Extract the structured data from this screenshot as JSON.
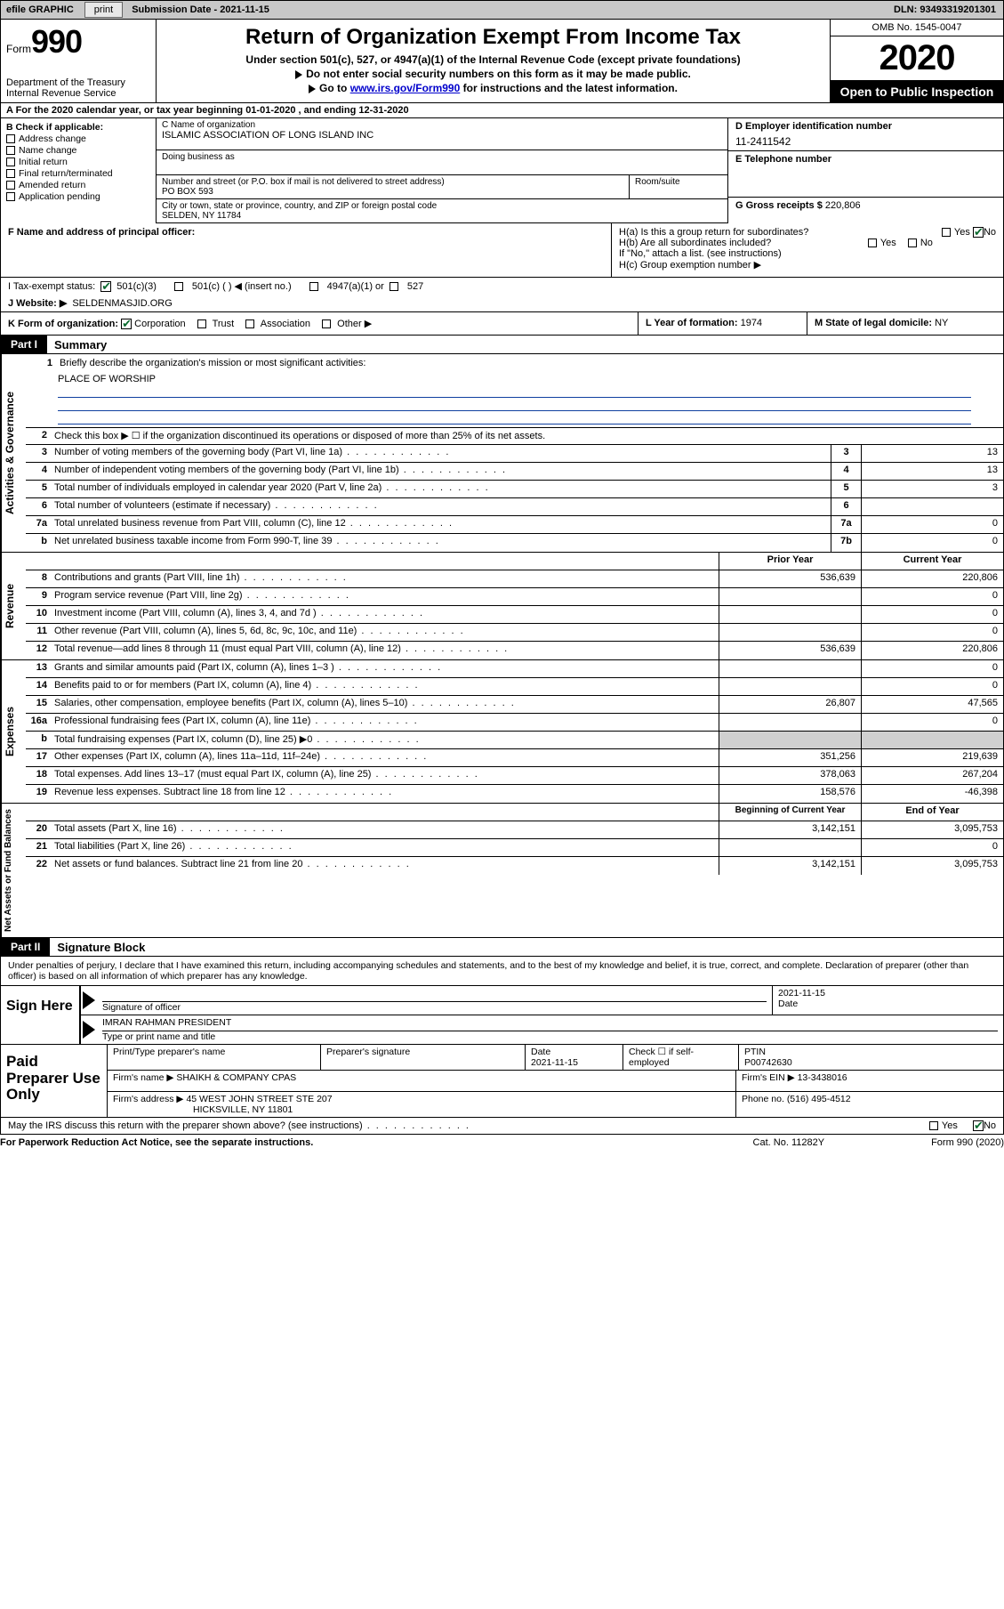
{
  "efile": {
    "graphic": "efile GRAPHIC",
    "print": "print",
    "submission": "Submission Date - 2021-11-15",
    "dln": "DLN: 93493319201301"
  },
  "header": {
    "form_word": "Form",
    "form_num": "990",
    "dept": "Department of the Treasury\nInternal Revenue Service",
    "title": "Return of Organization Exempt From Income Tax",
    "sub1": "Under section 501(c), 527, or 4947(a)(1) of the Internal Revenue Code (except private foundations)",
    "sub2": "Do not enter social security numbers on this form as it may be made public.",
    "sub3_a": "Go to ",
    "sub3_link": "www.irs.gov/Form990",
    "sub3_b": " for instructions and the latest information.",
    "omb": "OMB No. 1545-0047",
    "year": "2020",
    "open": "Open to Public Inspection"
  },
  "lineA": "A For the 2020 calendar year, or tax year beginning 01-01-2020   , and ending 12-31-2020",
  "B": {
    "label": "B Check if applicable:",
    "opts": [
      "Address change",
      "Name change",
      "Initial return",
      "Final return/terminated",
      "Amended return",
      "Application pending"
    ]
  },
  "C": {
    "name_lab": "C Name of organization",
    "name": "ISLAMIC ASSOCIATION OF LONG ISLAND INC",
    "dba_lab": "Doing business as",
    "street_lab": "Number and street (or P.O. box if mail is not delivered to street address)",
    "room_lab": "Room/suite",
    "street": "PO BOX 593",
    "city_lab": "City or town, state or province, country, and ZIP or foreign postal code",
    "city": "SELDEN, NY  11784"
  },
  "D": {
    "lab": "D Employer identification number",
    "val": "11-2411542"
  },
  "E": {
    "lab": "E Telephone number",
    "val": ""
  },
  "G": {
    "lab": "G Gross receipts $",
    "val": "220,806"
  },
  "F": {
    "lab": "F  Name and address of principal officer:"
  },
  "H": {
    "a": "H(a)  Is this a group return for subordinates?",
    "b": "H(b)  Are all subordinates included?",
    "b2": "If \"No,\" attach a list. (see instructions)",
    "c": "H(c)  Group exemption number ▶"
  },
  "I": {
    "lab": "I   Tax-exempt status:",
    "o1": "501(c)(3)",
    "o2": "501(c) (  ) ◀ (insert no.)",
    "o3": "4947(a)(1) or",
    "o4": "527"
  },
  "J": {
    "lab": "J   Website: ▶",
    "val": "SELDENMASJID.ORG"
  },
  "K": {
    "lab": "K Form of organization:",
    "opts": [
      "Corporation",
      "Trust",
      "Association",
      "Other ▶"
    ]
  },
  "L": {
    "lab": "L Year of formation:",
    "val": "1974"
  },
  "M": {
    "lab": "M State of legal domicile:",
    "val": "NY"
  },
  "partI": {
    "num": "Part I",
    "title": "Summary"
  },
  "summary": {
    "q1": "Briefly describe the organization's mission or most significant activities:",
    "mission": "PLACE OF WORSHIP",
    "q2": "Check this box ▶ ☐  if the organization discontinued its operations or disposed of more than 25% of its net assets.",
    "rows_simple": [
      {
        "n": "3",
        "t": "Number of voting members of the governing body (Part VI, line 1a)",
        "box": "3",
        "v": "13"
      },
      {
        "n": "4",
        "t": "Number of independent voting members of the governing body (Part VI, line 1b)",
        "box": "4",
        "v": "13"
      },
      {
        "n": "5",
        "t": "Total number of individuals employed in calendar year 2020 (Part V, line 2a)",
        "box": "5",
        "v": "3"
      },
      {
        "n": "6",
        "t": "Total number of volunteers (estimate if necessary)",
        "box": "6",
        "v": ""
      },
      {
        "n": "7a",
        "t": "Total unrelated business revenue from Part VIII, column (C), line 12",
        "box": "7a",
        "v": "0"
      },
      {
        "n": "b",
        "t": "Net unrelated business taxable income from Form 990-T, line 39",
        "box": "7b",
        "v": "0"
      }
    ],
    "col_prior": "Prior Year",
    "col_curr": "Current Year",
    "rev": [
      {
        "n": "8",
        "t": "Contributions and grants (Part VIII, line 1h)",
        "p": "536,639",
        "c": "220,806"
      },
      {
        "n": "9",
        "t": "Program service revenue (Part VIII, line 2g)",
        "p": "",
        "c": "0"
      },
      {
        "n": "10",
        "t": "Investment income (Part VIII, column (A), lines 3, 4, and 7d )",
        "p": "",
        "c": "0"
      },
      {
        "n": "11",
        "t": "Other revenue (Part VIII, column (A), lines 5, 6d, 8c, 9c, 10c, and 11e)",
        "p": "",
        "c": "0"
      },
      {
        "n": "12",
        "t": "Total revenue—add lines 8 through 11 (must equal Part VIII, column (A), line 12)",
        "p": "536,639",
        "c": "220,806"
      }
    ],
    "exp": [
      {
        "n": "13",
        "t": "Grants and similar amounts paid (Part IX, column (A), lines 1–3 )",
        "p": "",
        "c": "0"
      },
      {
        "n": "14",
        "t": "Benefits paid to or for members (Part IX, column (A), line 4)",
        "p": "",
        "c": "0"
      },
      {
        "n": "15",
        "t": "Salaries, other compensation, employee benefits (Part IX, column (A), lines 5–10)",
        "p": "26,807",
        "c": "47,565"
      },
      {
        "n": "16a",
        "t": "Professional fundraising fees (Part IX, column (A), line 11e)",
        "p": "",
        "c": "0"
      },
      {
        "n": "b",
        "t": "Total fundraising expenses (Part IX, column (D), line 25) ▶0",
        "p": "grey",
        "c": "grey"
      },
      {
        "n": "17",
        "t": "Other expenses (Part IX, column (A), lines 11a–11d, 11f–24e)",
        "p": "351,256",
        "c": "219,639"
      },
      {
        "n": "18",
        "t": "Total expenses. Add lines 13–17 (must equal Part IX, column (A), line 25)",
        "p": "378,063",
        "c": "267,204"
      },
      {
        "n": "19",
        "t": "Revenue less expenses. Subtract line 18 from line 12",
        "p": "158,576",
        "c": "-46,398"
      }
    ],
    "col_beg": "Beginning of Current Year",
    "col_end": "End of Year",
    "net": [
      {
        "n": "20",
        "t": "Total assets (Part X, line 16)",
        "p": "3,142,151",
        "c": "3,095,753"
      },
      {
        "n": "21",
        "t": "Total liabilities (Part X, line 26)",
        "p": "",
        "c": "0"
      },
      {
        "n": "22",
        "t": "Net assets or fund balances. Subtract line 21 from line 20",
        "p": "3,142,151",
        "c": "3,095,753"
      }
    ]
  },
  "partII": {
    "num": "Part II",
    "title": "Signature Block"
  },
  "sig": {
    "perjury": "Under penalties of perjury, I declare that I have examined this return, including accompanying schedules and statements, and to the best of my knowledge and belief, it is true, correct, and complete. Declaration of preparer (other than officer) is based on all information of which preparer has any knowledge.",
    "sign_here": "Sign Here",
    "sig_officer": "Signature of officer",
    "date_lab": "Date",
    "date_val": "2021-11-15",
    "name": "IMRAN RAHMAN  PRESIDENT",
    "name_lab": "Type or print name and title"
  },
  "paid": {
    "label": "Paid Preparer Use Only",
    "h1": "Print/Type preparer's name",
    "h2": "Preparer's signature",
    "h3": "Date",
    "h3v": "2021-11-15",
    "h4": "Check ☐ if self-employed",
    "h5": "PTIN",
    "ptin": "P00742630",
    "firm_lab": "Firm's name    ▶",
    "firm": "SHAIKH & COMPANY CPAS",
    "ein_lab": "Firm's EIN ▶",
    "ein": "13-3438016",
    "addr_lab": "Firm's address ▶",
    "addr1": "45 WEST JOHN STREET STE 207",
    "addr2": "HICKSVILLE, NY  11801",
    "phone_lab": "Phone no.",
    "phone": "(516) 495-4512"
  },
  "discuss": "May the IRS discuss this return with the preparer shown above? (see instructions)",
  "footer": {
    "l": "For Paperwork Reduction Act Notice, see the separate instructions.",
    "m": "Cat. No. 11282Y",
    "r": "Form 990 (2020)"
  },
  "labels": {
    "activities": "Activities & Governance",
    "revenue": "Revenue",
    "expenses": "Expenses",
    "net": "Net Assets or Fund Balances",
    "yes": "Yes",
    "no": "No"
  }
}
